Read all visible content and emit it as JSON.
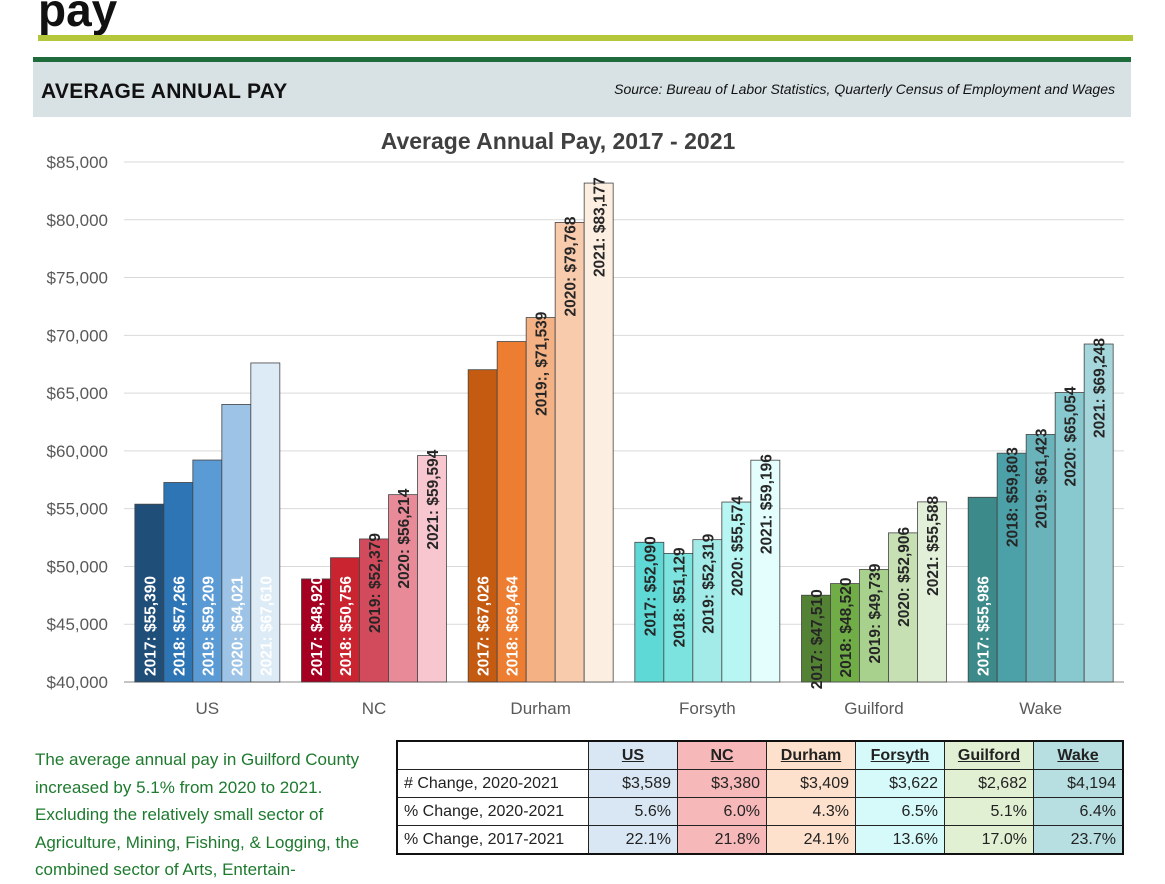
{
  "header": {
    "title": "pay",
    "section_heading": "AVERAGE ANNUAL PAY",
    "source": "Source:  Bureau of Labor Statistics, Quarterly Census of Employment and Wages"
  },
  "colors": {
    "lime_rule": "#b4c63a",
    "green_rule": "#1e6b3c",
    "band": "#d8e2e5",
    "summary_text": "#1e7a2e"
  },
  "chart_data": {
    "type": "bar",
    "title": "Average Annual Pay, 2017 - 2021",
    "xlabel": "",
    "ylabel": "",
    "ylim": [
      40000,
      85000
    ],
    "yticks": [
      40000,
      45000,
      50000,
      55000,
      60000,
      65000,
      70000,
      75000,
      80000,
      85000
    ],
    "ytick_labels": [
      "$40,000",
      "$45,000",
      "$50,000",
      "$55,000",
      "$60,000",
      "$65,000",
      "$70,000",
      "$75,000",
      "$80,000",
      "$85,000"
    ],
    "grid": true,
    "legend": "none",
    "categories": [
      "US",
      "NC",
      "Durham",
      "Forsyth",
      "Guilford",
      "Wake"
    ],
    "groups": [
      {
        "name": "US",
        "colors": [
          "#1f4e79",
          "#2e75b6",
          "#5b9bd5",
          "#9dc3e6",
          "#ddebf7"
        ],
        "values": [
          55390,
          57266,
          59209,
          64021,
          67610
        ],
        "labels": [
          "2017: $55,390",
          "2018: $57,266",
          "2019: $59,209",
          "2020: $64,021",
          "2021: $67,610"
        ]
      },
      {
        "name": "NC",
        "colors": [
          "#a50021",
          "#c9242f",
          "#d24b5c",
          "#e98a98",
          "#f7c6ce"
        ],
        "values": [
          48920,
          50756,
          52379,
          56214,
          59594
        ],
        "labels": [
          "2017: $48,920",
          "2018: $50,756",
          "2019: $52,379",
          "2020: $56,214",
          "2021: $59,594"
        ]
      },
      {
        "name": "Durham",
        "colors": [
          "#c55a11",
          "#ed7d31",
          "#f4b183",
          "#f8cbad",
          "#fdeee2"
        ],
        "values": [
          67026,
          69464,
          71539,
          79768,
          83177
        ],
        "labels": [
          "2017: $67,026",
          "2018: $69,464",
          "2019:, $71,539",
          "2020: $79,768",
          "2021: $83,177"
        ]
      },
      {
        "name": "Forsyth",
        "colors": [
          "#5fd9d6",
          "#7de3df",
          "#a2ebe8",
          "#b7f6f3",
          "#e3fefd"
        ],
        "values": [
          52090,
          51129,
          52319,
          55574,
          59196
        ],
        "labels": [
          "2017: $52,090",
          "2018: $51,129",
          "2019: $52,319",
          "2020: $55,574",
          "2021: $59,196"
        ]
      },
      {
        "name": "Guilford",
        "colors": [
          "#548235",
          "#70ad47",
          "#a9d18e",
          "#c6e0b4",
          "#e2f0d9"
        ],
        "values": [
          47510,
          48520,
          49739,
          52906,
          55588
        ],
        "labels": [
          "2017: $47,510",
          "2018: $48,520",
          "2019: $49,739",
          "2020: $52,906",
          "2021: $55,588"
        ]
      },
      {
        "name": "Wake",
        "colors": [
          "#3d8a8a",
          "#4ca0a8",
          "#6ab3bb",
          "#88c8cf",
          "#a4d6db"
        ],
        "values": [
          55986,
          59803,
          61423,
          65054,
          69248
        ],
        "labels": [
          "2017: $55,986",
          "2018: $59,803",
          "2019: $61,423",
          "2020: $65,054",
          "2021: $69,248"
        ]
      }
    ],
    "light_label_bars": {
      "US": [
        0,
        1,
        2,
        3,
        4
      ],
      "NC": [
        0,
        1
      ],
      "Durham": [
        0,
        1
      ],
      "Forsyth": [],
      "Guilford": [],
      "Wake": [
        0
      ]
    }
  },
  "summary": {
    "text": "The average annual pay in Guilford County increased by 5.1% from 2020 to 2021. Excluding the relatively small sector of Agriculture, Mining, Fishing, & Logging, the combined sector of Arts, Entertain-"
  },
  "table": {
    "headers": [
      "US",
      "NC",
      "Durham",
      "Forsyth",
      "Guilford",
      "Wake"
    ],
    "rows": [
      {
        "label": "# Change, 2020-2021",
        "values": [
          "$3,589",
          "$3,380",
          "$3,409",
          "$3,622",
          "$2,682",
          "$4,194"
        ]
      },
      {
        "label": "% Change, 2020-2021",
        "values": [
          "5.6%",
          "6.0%",
          "4.3%",
          "6.5%",
          "5.1%",
          "6.4%"
        ]
      },
      {
        "label": "% Change, 2017-2021",
        "values": [
          "22.1%",
          "21.8%",
          "24.1%",
          "13.6%",
          "17.0%",
          "23.7%"
        ]
      }
    ]
  }
}
